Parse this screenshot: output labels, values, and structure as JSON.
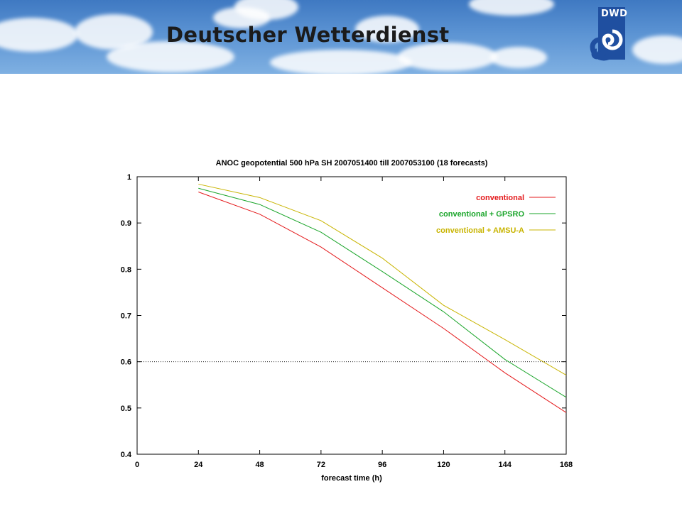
{
  "header": {
    "title": "Deutscher Wetterdienst",
    "logo_text": "DWD"
  },
  "colors": {
    "banner_sky": "#4f86c9",
    "logo_blue": "#1f4fa0"
  },
  "chart_data": {
    "type": "line",
    "title": "ANOC geopotential 500 hPa  SH    2007051400 till 2007053100  (18 forecasts)",
    "xlabel": "forecast time (h)",
    "ylabel": "",
    "xlim": [
      0,
      168
    ],
    "ylim": [
      0.4,
      1
    ],
    "xticks": [
      "0",
      "24",
      "48",
      "72",
      "96",
      "120",
      "144",
      "168"
    ],
    "yticks": [
      "0.4",
      "0.5",
      "0.6",
      "0.7",
      "0.8",
      "0.9",
      "1"
    ],
    "reference_line": 0.6,
    "legend_position": "top-right",
    "grid": false,
    "x": [
      24,
      48,
      72,
      96,
      120,
      144,
      168
    ],
    "series": [
      {
        "name": "conventional",
        "color": "#e41a1c",
        "values": [
          0.967,
          0.919,
          0.848,
          0.76,
          0.672,
          0.576,
          0.49
        ]
      },
      {
        "name": "conventional  + GPSRO",
        "color": "#1aa52a",
        "values": [
          0.975,
          0.94,
          0.88,
          0.795,
          0.708,
          0.605,
          0.523
        ]
      },
      {
        "name": "conventional  + AMSU-A",
        "color": "#c8b400",
        "values": [
          0.984,
          0.955,
          0.905,
          0.824,
          0.722,
          0.648,
          0.571
        ]
      }
    ]
  }
}
